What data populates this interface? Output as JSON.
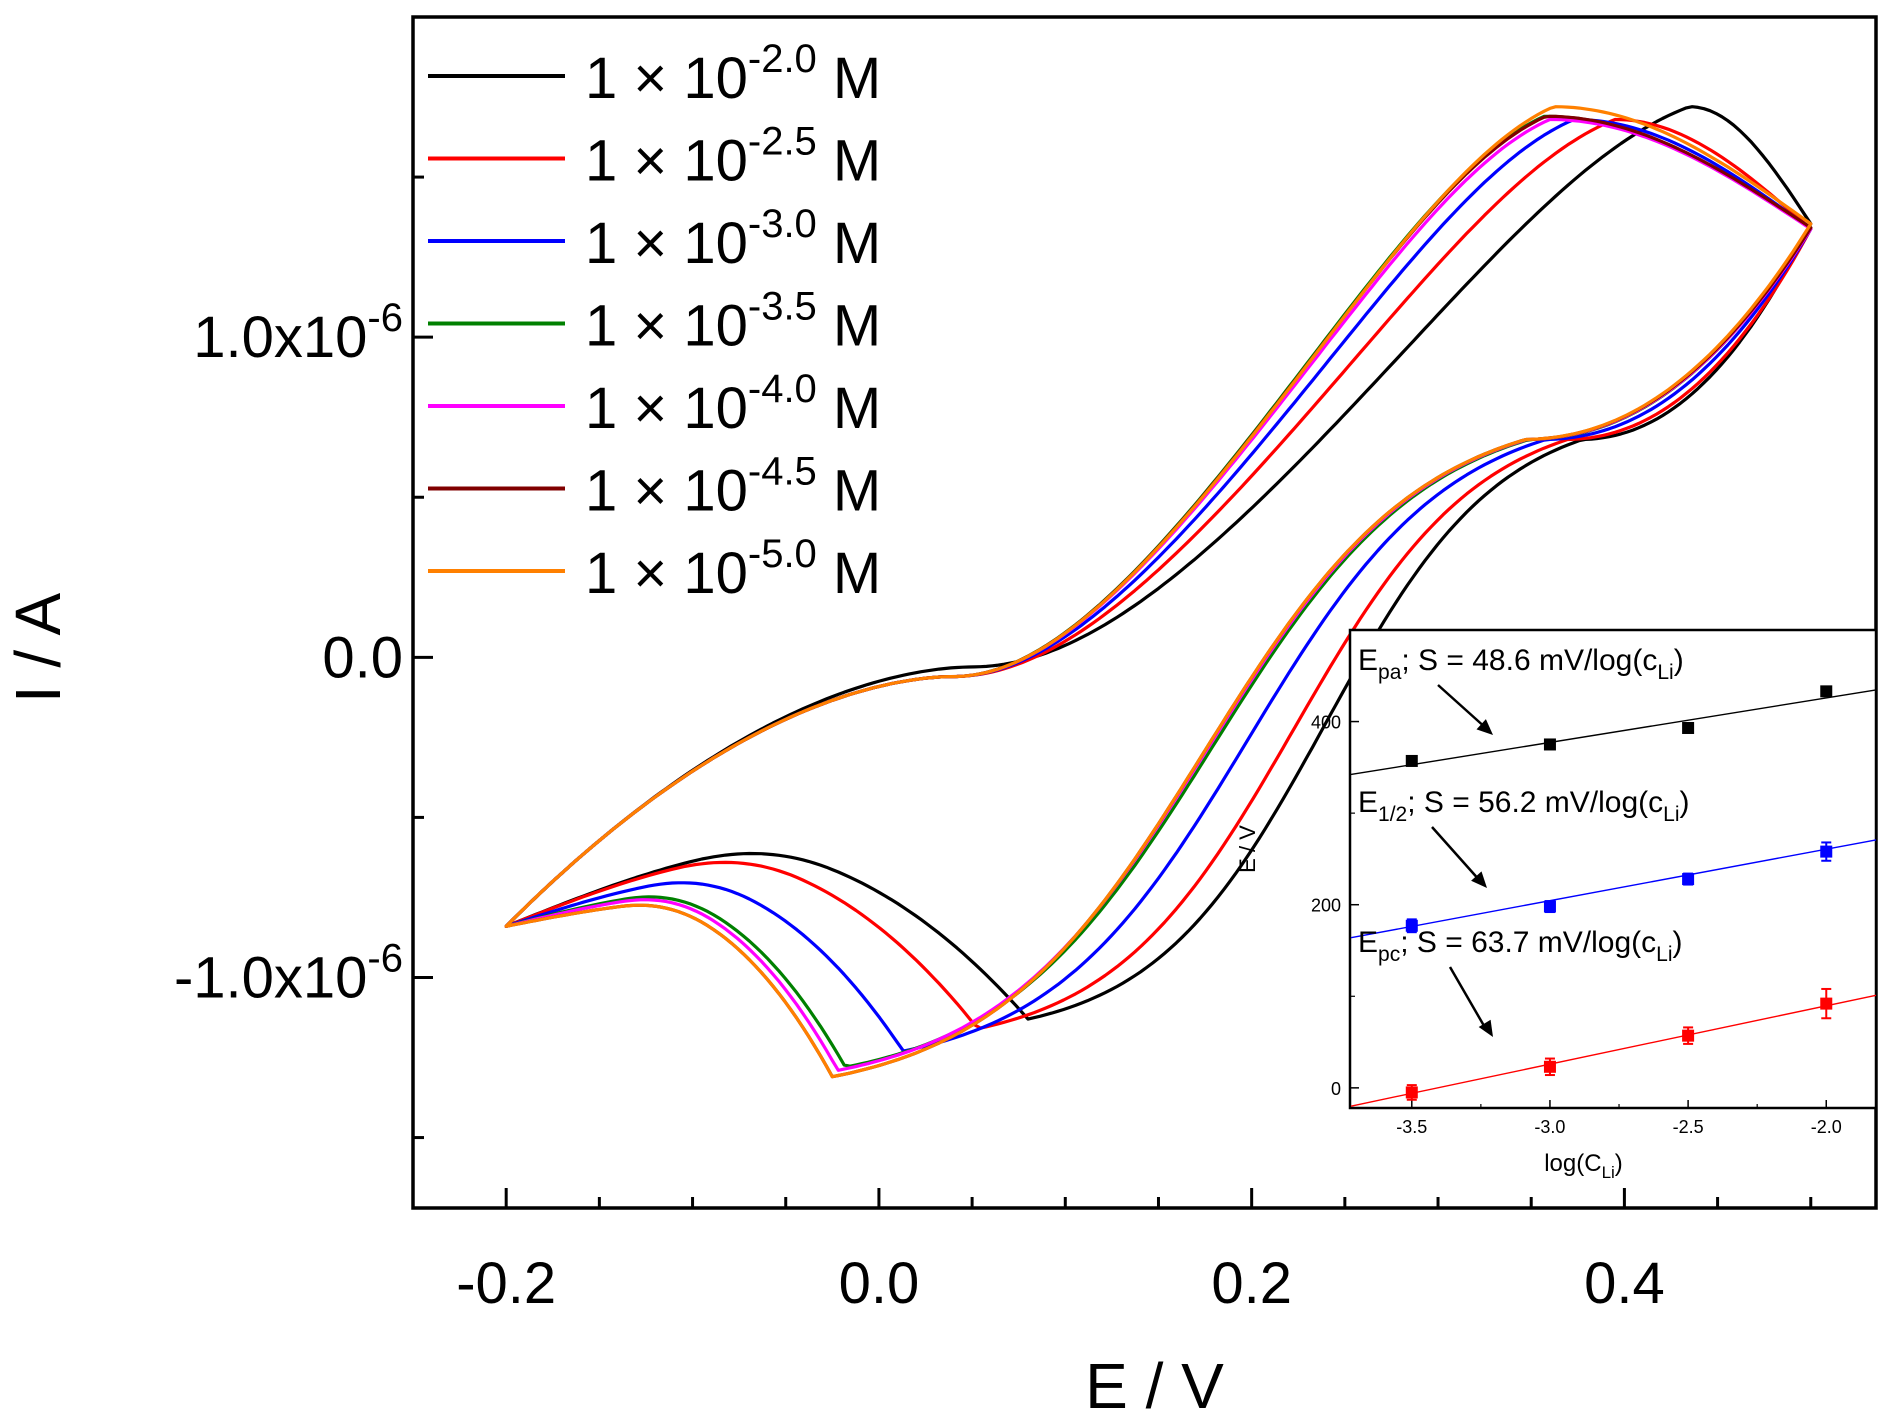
{
  "chart_data": [
    {
      "type": "line",
      "title": "",
      "xlabel": "E / V",
      "ylabel": "I / A",
      "xlim": [
        -0.25,
        0.535
      ],
      "ylim": [
        -1.72e-06,
        2e-06
      ],
      "x_ticks": [
        {
          "value": -0.2,
          "label": "-0.2"
        },
        {
          "value": 0.0,
          "label": "0.0"
        },
        {
          "value": 0.2,
          "label": "0.2"
        },
        {
          "value": 0.4,
          "label": "0.4"
        }
      ],
      "y_ticks": [
        {
          "value": 1e-06,
          "label": "1.0x10",
          "exp": "-6"
        },
        {
          "value": 0.0,
          "label": "0.0",
          "exp": ""
        },
        {
          "value": -1e-06,
          "label": "-1.0x10",
          "exp": "-6"
        }
      ],
      "grid": false,
      "legend_position": "top-left",
      "series": [
        {
          "name": "1 × 10",
          "exp": "-2.0",
          "unit": "M",
          "color": "#000000",
          "cathodic_peak": [
            0.08,
            -1.13e-06
          ],
          "anodic_peak": [
            0.435,
            1.72e-06
          ],
          "crossing": [
            0.05,
            -3e-08
          ]
        },
        {
          "name": "1 × 10",
          "exp": "-2.5",
          "unit": "M",
          "color": "#ff0000",
          "cathodic_peak": [
            0.053,
            -1.16e-06
          ],
          "anodic_peak": [
            0.395,
            1.68e-06
          ],
          "crossing": [
            0.04,
            -6e-08
          ]
        },
        {
          "name": "1 × 10",
          "exp": "-3.0",
          "unit": "M",
          "color": "#0000ff",
          "cathodic_peak": [
            0.013,
            -1.23e-06
          ],
          "anodic_peak": [
            0.373,
            1.68e-06
          ],
          "crossing": [
            0.04,
            -6e-08
          ]
        },
        {
          "name": "1 × 10",
          "exp": "-3.5",
          "unit": "M",
          "color": "#008000",
          "cathodic_peak": [
            -0.018,
            -1.28e-06
          ],
          "anodic_peak": [
            0.357,
            1.69e-06
          ],
          "crossing": [
            0.04,
            -6e-08
          ]
        },
        {
          "name": "1 × 10",
          "exp": "-4.0",
          "unit": "M",
          "color": "#ff00ff",
          "cathodic_peak": [
            -0.022,
            -1.29e-06
          ],
          "anodic_peak": [
            0.36,
            1.68e-06
          ],
          "crossing": [
            0.04,
            -6e-08
          ]
        },
        {
          "name": "1 × 10",
          "exp": "-4.5",
          "unit": "M",
          "color": "#800000",
          "cathodic_peak": [
            -0.025,
            -1.31e-06
          ],
          "anodic_peak": [
            0.358,
            1.69e-06
          ],
          "crossing": [
            0.04,
            -6e-08
          ]
        },
        {
          "name": "1 × 10",
          "exp": "-5.0",
          "unit": "M",
          "color": "#ff8000",
          "cathodic_peak": [
            -0.025,
            -1.31e-06
          ],
          "anodic_peak": [
            0.362,
            1.72e-06
          ],
          "crossing": [
            0.04,
            -6e-08
          ]
        }
      ]
    },
    {
      "type": "scatter",
      "title": "",
      "xlabel": "log(C",
      "xlabel_sub": "Li",
      "xlabel_end": ")",
      "ylabel": "E / V",
      "xlim": [
        -3.72,
        -1.82
      ],
      "ylim": [
        -22,
        500
      ],
      "x_ticks": [
        -3.5,
        -3.0,
        -2.5,
        -2.0
      ],
      "x_tick_labels": [
        "-3.5",
        "-3.0",
        "-2.5",
        "-2.0"
      ],
      "y_ticks": [
        0,
        200,
        400
      ],
      "y_tick_labels": [
        "0",
        "200",
        "400"
      ],
      "series": [
        {
          "name": "E",
          "sub": "pa",
          "slope_text": "; S = 48.6 mV/log(c",
          "slope_sub": "Li",
          "slope_end": ")",
          "color": "#000000",
          "x": [
            -3.5,
            -3.0,
            -2.5,
            -2.0
          ],
          "y": [
            357,
            375,
            393,
            433
          ],
          "err": [
            5,
            5,
            5,
            5
          ],
          "fit": {
            "slope": 48.6,
            "intercept": 523
          }
        },
        {
          "name": "E",
          "sub": "1/2",
          "slope_text": "; S = 56.2 mV/log(c",
          "slope_sub": "Li",
          "slope_end": ")",
          "color": "#0000ff",
          "x": [
            -3.5,
            -3.0,
            -2.5,
            -2.0
          ],
          "y": [
            177,
            198,
            228,
            258
          ],
          "err": [
            7,
            6,
            6,
            10
          ],
          "fit": {
            "slope": 56.2,
            "intercept": 373
          }
        },
        {
          "name": "E",
          "sub": "pc",
          "slope_text": "; S = 63.7 mV/log(c",
          "slope_sub": "Li",
          "slope_end": ")",
          "color": "#ff0000",
          "x": [
            -3.5,
            -3.0,
            -2.5,
            -2.0
          ],
          "y": [
            -5,
            23,
            57,
            92
          ],
          "err": [
            8,
            9,
            9,
            16
          ],
          "fit": {
            "slope": 63.7,
            "intercept": 217
          }
        }
      ]
    }
  ]
}
